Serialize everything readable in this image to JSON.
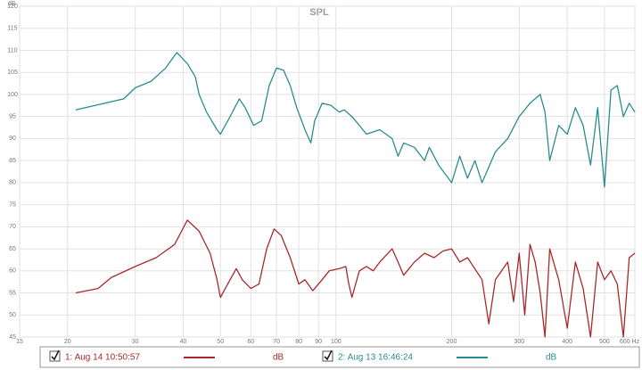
{
  "chart_data": {
    "type": "line",
    "title": "SPL",
    "ylabel": "dB",
    "log_x": true,
    "grid": true,
    "xlim": [
      15,
      600
    ],
    "ylim": [
      45,
      120
    ],
    "xticks": [
      15,
      20,
      30,
      40,
      50,
      60,
      70,
      80,
      90,
      100,
      200,
      300,
      400,
      500,
      {
        "value": 600,
        "label": "600 Hz"
      }
    ],
    "yticks": [
      45,
      50,
      55,
      60,
      65,
      70,
      75,
      80,
      85,
      90,
      95,
      100,
      105,
      110,
      115,
      120
    ],
    "series": [
      {
        "name": "1: Aug 14 10:50:57",
        "unit": "dB",
        "color": "#a8292b",
        "x": [
          21,
          24,
          26,
          30,
          34,
          38,
          41,
          44,
          47,
          49,
          50,
          53,
          55,
          57,
          60,
          63,
          66,
          69,
          72,
          76,
          80,
          83,
          87,
          92,
          96,
          102,
          106,
          108,
          110,
          115,
          120,
          125,
          130,
          140,
          145,
          150,
          160,
          170,
          180,
          190,
          200,
          210,
          220,
          240,
          250,
          260,
          280,
          290,
          300,
          310,
          320,
          330,
          340,
          350,
          360,
          380,
          400,
          420,
          440,
          460,
          480,
          500,
          520,
          540,
          560,
          580,
          600
        ],
        "values": [
          55,
          56,
          58.5,
          61,
          63,
          66,
          71.5,
          69,
          64,
          58,
          54,
          58,
          60.5,
          58,
          56,
          57,
          65,
          69.5,
          68,
          63,
          57,
          58,
          55.5,
          58,
          60,
          60.5,
          61,
          57,
          54,
          60,
          61,
          60,
          62,
          65,
          62,
          59,
          62,
          64,
          63,
          64.5,
          65,
          62,
          63,
          58,
          48,
          58,
          62,
          53,
          64,
          50,
          66,
          62,
          55,
          45,
          65,
          58,
          47,
          62,
          56,
          45,
          62,
          58,
          60,
          57,
          45,
          63,
          64
        ]
      },
      {
        "name": "2: Aug 13 16:46:24",
        "unit": "dB",
        "color": "#2b8d8f",
        "x": [
          21,
          28,
          30,
          33,
          36,
          38.5,
          41,
          43,
          44,
          46,
          49,
          50,
          53,
          56,
          58,
          61,
          64,
          67,
          70,
          73,
          76,
          79,
          83,
          86,
          88,
          92,
          97,
          102,
          105,
          110,
          115,
          120,
          130,
          140,
          145,
          150,
          160,
          170,
          175,
          185,
          200,
          210,
          220,
          230,
          240,
          260,
          280,
          300,
          320,
          340,
          350,
          360,
          380,
          400,
          420,
          440,
          460,
          480,
          500,
          520,
          540,
          560,
          580,
          600
        ],
        "values": [
          96.5,
          99,
          101.5,
          103,
          106,
          109.5,
          107,
          104,
          100,
          96,
          92,
          91,
          95,
          99,
          97,
          93,
          94,
          102,
          106,
          105.5,
          102,
          97,
          92,
          89,
          94,
          98,
          97.5,
          96,
          96.5,
          95,
          93,
          91,
          92,
          90,
          86,
          89,
          88,
          85,
          88,
          84,
          80,
          86,
          81,
          85,
          80,
          87,
          90,
          95,
          98,
          100,
          96,
          85,
          93,
          91,
          97,
          93,
          84,
          97,
          79,
          101,
          102,
          95,
          98,
          96
        ]
      }
    ]
  }
}
